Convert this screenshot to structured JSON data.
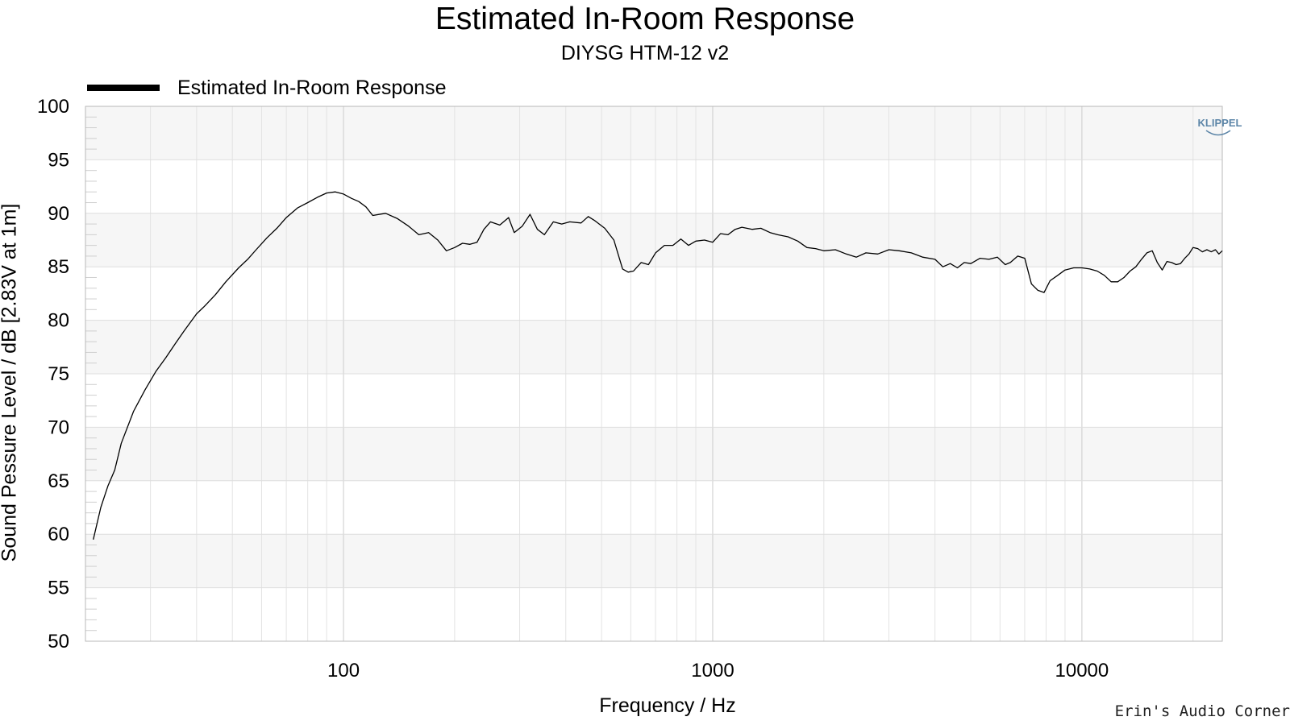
{
  "chart_data": {
    "type": "line",
    "title": "Estimated In-Room Response",
    "subtitle": "DIYSG HTM-12 v2",
    "xlabel": "Frequency / Hz",
    "ylabel": "Sound Pessure Level / dB   [2.83V at 1m]",
    "xscale": "log",
    "xlim": [
      20,
      24000
    ],
    "ylim": [
      50,
      100
    ],
    "y_ticks": [
      "100",
      "95",
      "90",
      "85",
      "80",
      "75",
      "70",
      "65",
      "60",
      "55",
      "50"
    ],
    "x_ticks": [
      "100",
      "1000",
      "10000"
    ],
    "grid": true,
    "legend_position": "top-left",
    "series": [
      {
        "name": "Estimated In-Room Response",
        "color": "#000000",
        "points": [
          [
            21,
            59.5
          ],
          [
            22,
            62.5
          ],
          [
            23,
            64.5
          ],
          [
            24,
            66
          ],
          [
            25,
            68.5
          ],
          [
            27,
            71.5
          ],
          [
            29,
            73.5
          ],
          [
            31,
            75.2
          ],
          [
            33,
            76.5
          ],
          [
            35,
            77.8
          ],
          [
            37,
            79
          ],
          [
            40,
            80.6
          ],
          [
            42,
            81.3
          ],
          [
            45,
            82.4
          ],
          [
            48,
            83.6
          ],
          [
            52,
            84.9
          ],
          [
            55,
            85.7
          ],
          [
            58,
            86.6
          ],
          [
            62,
            87.7
          ],
          [
            66,
            88.6
          ],
          [
            70,
            89.6
          ],
          [
            75,
            90.5
          ],
          [
            80,
            91
          ],
          [
            85,
            91.5
          ],
          [
            90,
            91.9
          ],
          [
            95,
            92
          ],
          [
            100,
            91.8
          ],
          [
            105,
            91.4
          ],
          [
            110,
            91.1
          ],
          [
            115,
            90.6
          ],
          [
            120,
            89.8
          ],
          [
            130,
            90
          ],
          [
            140,
            89.5
          ],
          [
            150,
            88.8
          ],
          [
            160,
            88
          ],
          [
            170,
            88.2
          ],
          [
            180,
            87.5
          ],
          [
            190,
            86.5
          ],
          [
            200,
            86.8
          ],
          [
            210,
            87.2
          ],
          [
            220,
            87.1
          ],
          [
            230,
            87.3
          ],
          [
            240,
            88.5
          ],
          [
            250,
            89.2
          ],
          [
            265,
            88.9
          ],
          [
            280,
            89.6
          ],
          [
            290,
            88.2
          ],
          [
            305,
            88.8
          ],
          [
            320,
            89.9
          ],
          [
            335,
            88.5
          ],
          [
            350,
            88
          ],
          [
            370,
            89.2
          ],
          [
            390,
            89
          ],
          [
            410,
            89.2
          ],
          [
            440,
            89.1
          ],
          [
            460,
            89.7
          ],
          [
            480,
            89.3
          ],
          [
            510,
            88.6
          ],
          [
            540,
            87.5
          ],
          [
            570,
            84.8
          ],
          [
            590,
            84.5
          ],
          [
            610,
            84.6
          ],
          [
            640,
            85.4
          ],
          [
            670,
            85.2
          ],
          [
            700,
            86.3
          ],
          [
            740,
            87
          ],
          [
            780,
            87
          ],
          [
            820,
            87.6
          ],
          [
            860,
            87
          ],
          [
            900,
            87.4
          ],
          [
            950,
            87.5
          ],
          [
            1000,
            87.3
          ],
          [
            1050,
            88.1
          ],
          [
            1100,
            88
          ],
          [
            1150,
            88.5
          ],
          [
            1200,
            88.7
          ],
          [
            1280,
            88.5
          ],
          [
            1350,
            88.6
          ],
          [
            1430,
            88.2
          ],
          [
            1500,
            88
          ],
          [
            1600,
            87.8
          ],
          [
            1700,
            87.4
          ],
          [
            1800,
            86.8
          ],
          [
            1900,
            86.7
          ],
          [
            2000,
            86.5
          ],
          [
            2150,
            86.6
          ],
          [
            2300,
            86.2
          ],
          [
            2450,
            85.9
          ],
          [
            2600,
            86.3
          ],
          [
            2800,
            86.2
          ],
          [
            3000,
            86.6
          ],
          [
            3200,
            86.5
          ],
          [
            3450,
            86.3
          ],
          [
            3700,
            85.9
          ],
          [
            4000,
            85.7
          ],
          [
            4200,
            85
          ],
          [
            4400,
            85.3
          ],
          [
            4600,
            84.9
          ],
          [
            4800,
            85.4
          ],
          [
            5000,
            85.3
          ],
          [
            5300,
            85.8
          ],
          [
            5600,
            85.7
          ],
          [
            5900,
            85.9
          ],
          [
            6200,
            85.2
          ],
          [
            6400,
            85.4
          ],
          [
            6700,
            86
          ],
          [
            7000,
            85.8
          ],
          [
            7300,
            83.4
          ],
          [
            7600,
            82.8
          ],
          [
            7900,
            82.6
          ],
          [
            8200,
            83.7
          ],
          [
            8600,
            84.2
          ],
          [
            9000,
            84.7
          ],
          [
            9500,
            84.9
          ],
          [
            10000,
            84.9
          ],
          [
            10500,
            84.8
          ],
          [
            11000,
            84.6
          ],
          [
            11500,
            84.2
          ],
          [
            12000,
            83.6
          ],
          [
            12500,
            83.6
          ],
          [
            13000,
            84
          ],
          [
            13500,
            84.6
          ],
          [
            14000,
            85
          ],
          [
            14500,
            85.7
          ],
          [
            15000,
            86.3
          ],
          [
            15500,
            86.5
          ],
          [
            16000,
            85.4
          ],
          [
            16500,
            84.7
          ],
          [
            17000,
            85.5
          ],
          [
            17500,
            85.4
          ],
          [
            18000,
            85.2
          ],
          [
            18500,
            85.3
          ],
          [
            19000,
            85.8
          ],
          [
            19500,
            86.2
          ],
          [
            20000,
            86.8
          ],
          [
            20600,
            86.7
          ],
          [
            21200,
            86.4
          ],
          [
            21800,
            86.6
          ],
          [
            22400,
            86.4
          ],
          [
            23000,
            86.6
          ],
          [
            23500,
            86.2
          ],
          [
            24000,
            86.5
          ]
        ]
      }
    ]
  },
  "credit": "Erin's Audio Corner",
  "logo_text": "KLIPPEL"
}
